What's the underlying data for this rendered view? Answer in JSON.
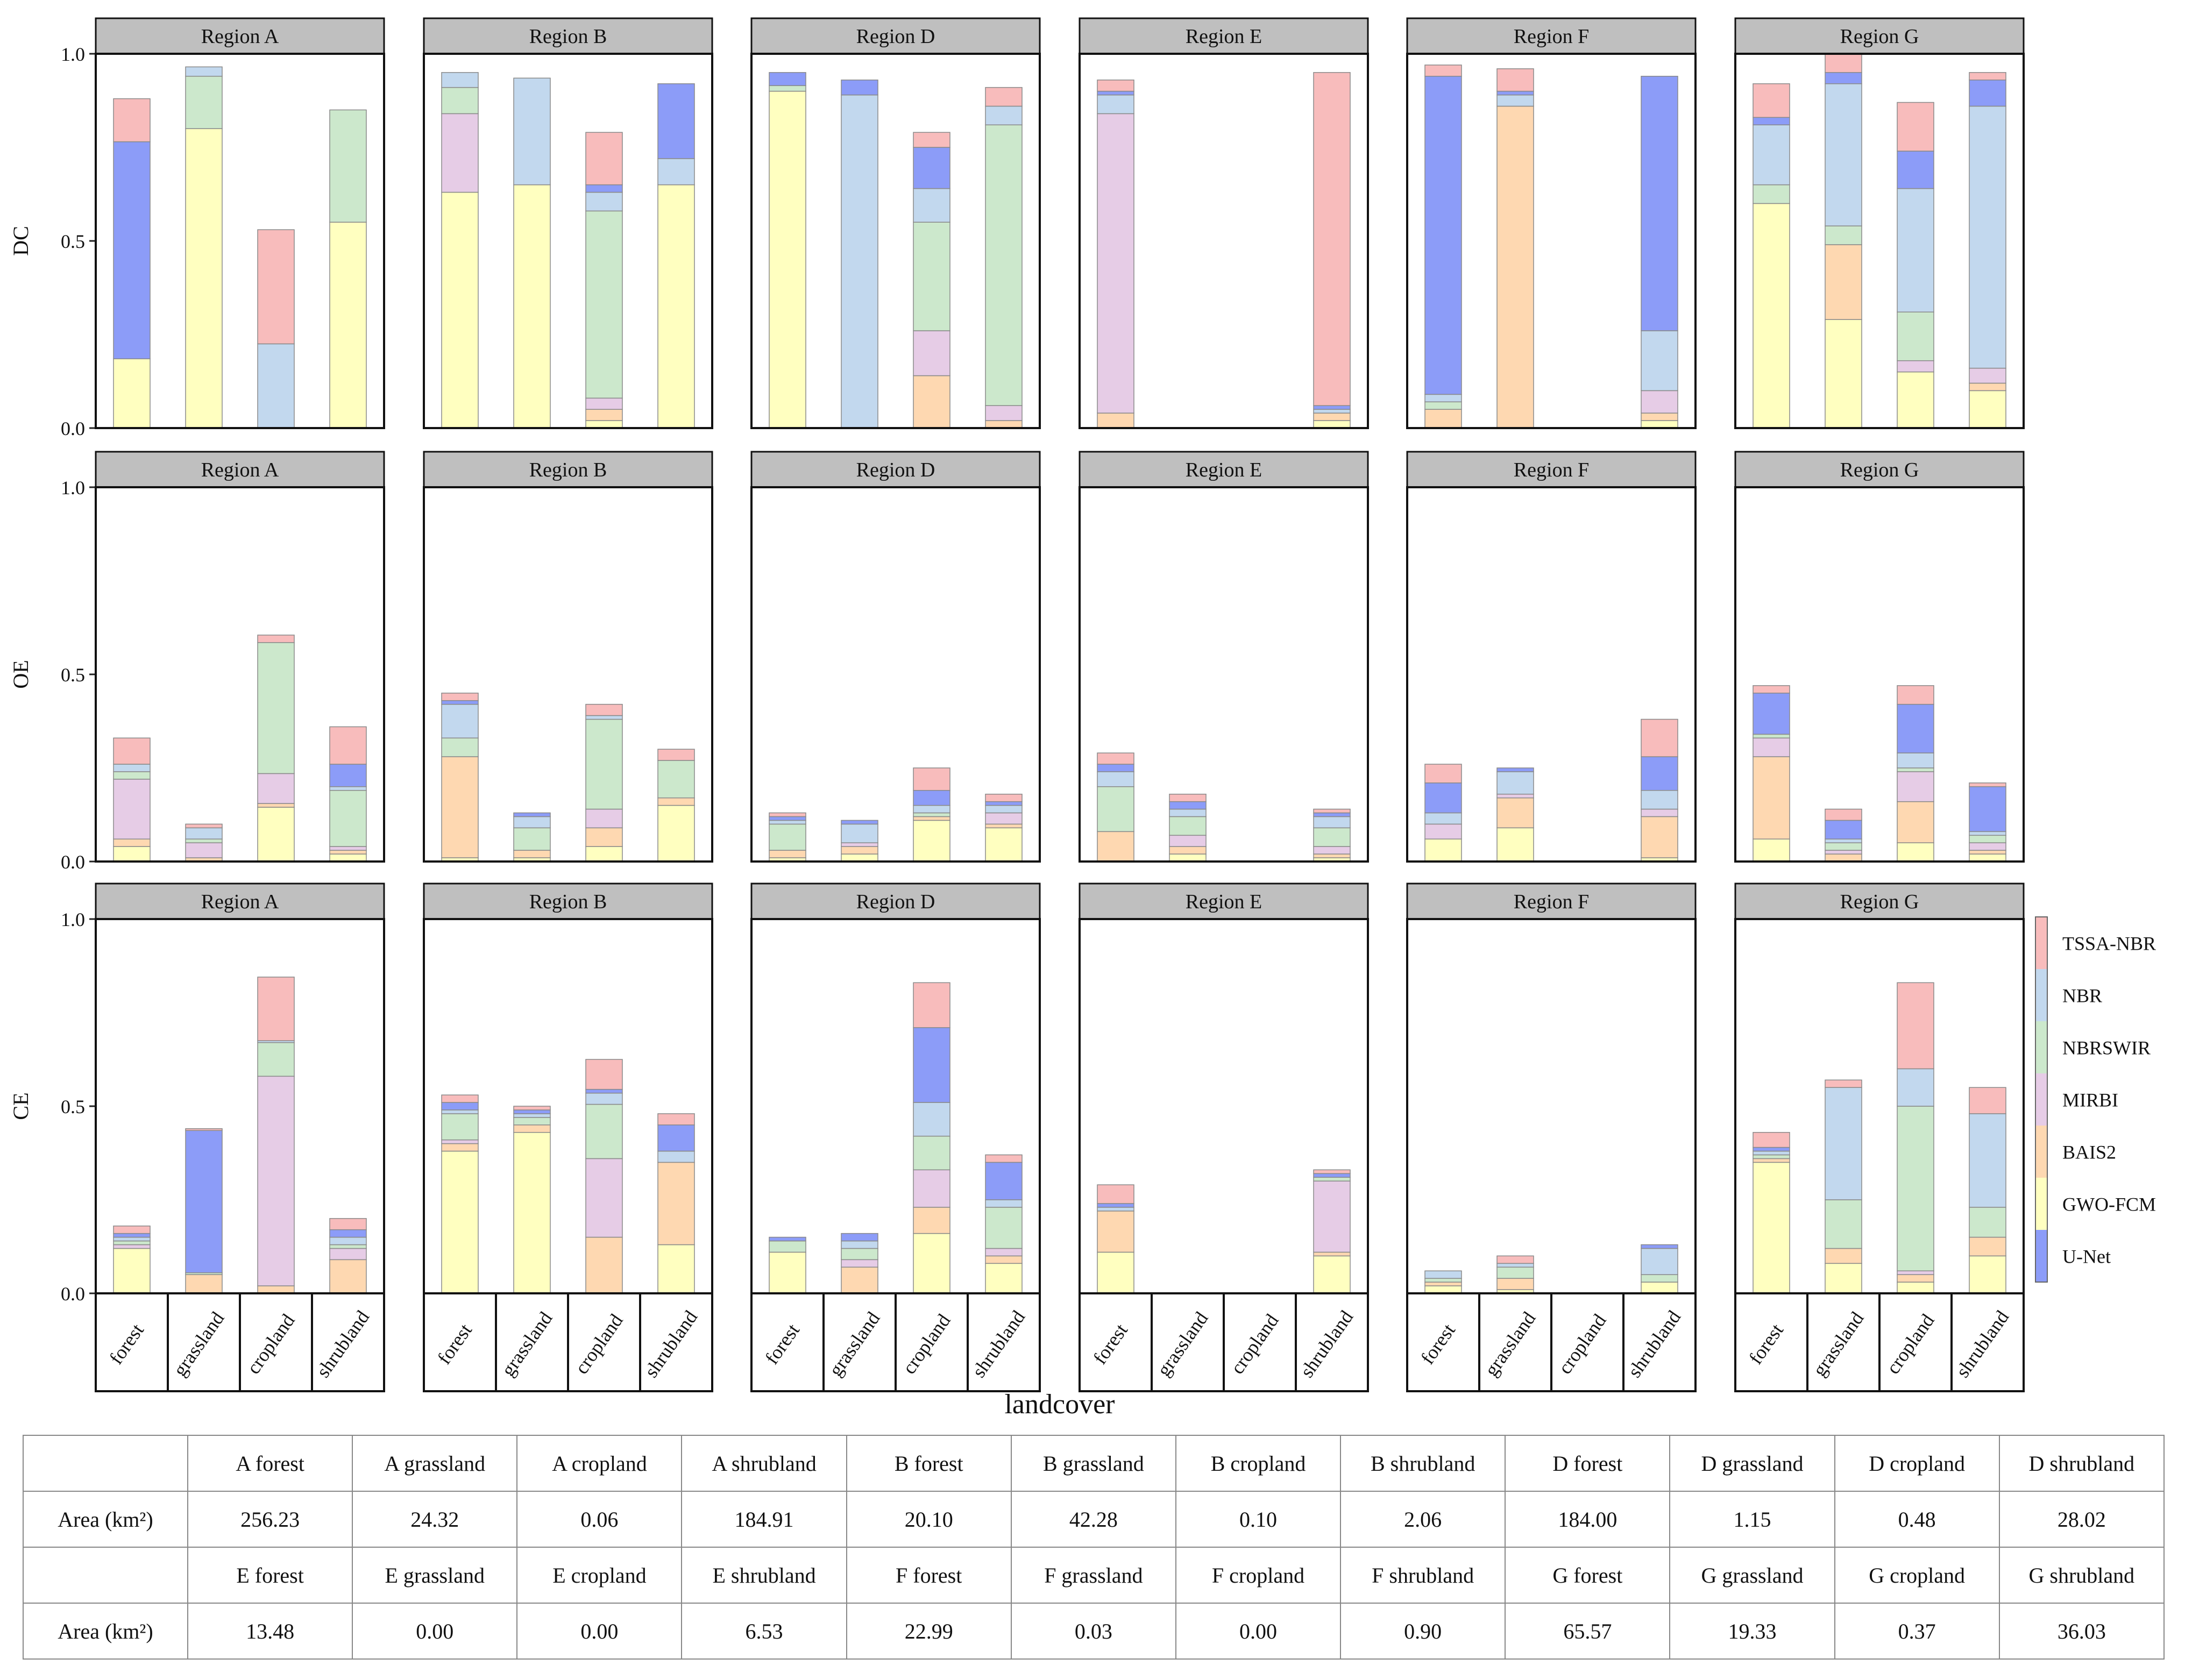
{
  "chart_data": {
    "type": "bar",
    "stacked": true,
    "rows": [
      "DC",
      "OE",
      "CE"
    ],
    "regions": [
      "Region A",
      "Region B",
      "Region D",
      "Region E",
      "Region F",
      "Region G"
    ],
    "categories": [
      "forest",
      "grassland",
      "cropland",
      "shrubland"
    ],
    "xlabel": "landcover",
    "ylim": [
      0,
      1.0
    ],
    "yticks": [
      "0.0",
      "0.5",
      "1.0"
    ],
    "legend": {
      "position": "right",
      "entries": [
        "TSSA-NBR",
        "NBR",
        "NBRSWIR",
        "MIRBI",
        "BAIS2",
        "GWO-FCM",
        "U-Net"
      ]
    },
    "stack_order": [
      "GWO-FCM",
      "BAIS2",
      "MIRBI",
      "NBRSWIR",
      "NBR",
      "U-Net",
      "TSSA-NBR"
    ],
    "colors": {
      "GWO-FCM": "#ffffc0",
      "BAIS2": "#fed8b1",
      "MIRBI": "#e6cce6",
      "NBRSWIR": "#cce8cc",
      "NBR": "#c2d8ee",
      "U-Net": "#8c9cf8",
      "TSSA-NBR": "#f8bcbc"
    },
    "panels": {
      "DC": {
        "Region A": [
          [
            0.185,
            0,
            0,
            0,
            0,
            0.58,
            0.115
          ],
          [
            0.8,
            0,
            0,
            0.14,
            0.025,
            0,
            0
          ],
          [
            0,
            0,
            0,
            0,
            0.225,
            0,
            0.305
          ],
          [
            0.55,
            0,
            0,
            0.3,
            0,
            0,
            0
          ]
        ],
        "Region B": [
          [
            0.63,
            0,
            0.21,
            0.07,
            0.04,
            0,
            0
          ],
          [
            0.65,
            0,
            0,
            0,
            0.285,
            0,
            0
          ],
          [
            0.02,
            0.03,
            0.03,
            0.5,
            0.05,
            0.02,
            0.14
          ],
          [
            0.65,
            0,
            0,
            0,
            0.07,
            0.2,
            0
          ]
        ],
        "Region D": [
          [
            0.9,
            0,
            0,
            0.015,
            0,
            0.035,
            0
          ],
          [
            0,
            0,
            0,
            0,
            0.89,
            0.04,
            0
          ],
          [
            0,
            0.14,
            0.12,
            0.29,
            0.09,
            0.11,
            0.04
          ],
          [
            0,
            0.02,
            0.04,
            0.75,
            0.05,
            0,
            0.05
          ]
        ],
        "Region E": [
          [
            0,
            0.04,
            0.8,
            0,
            0.05,
            0.01,
            0.03
          ],
          [
            0,
            0,
            0,
            0,
            0,
            0,
            0
          ],
          [
            0,
            0,
            0,
            0,
            0,
            0,
            0
          ],
          [
            0.02,
            0.02,
            0,
            0,
            0.01,
            0.01,
            0.89
          ]
        ],
        "Region F": [
          [
            0,
            0.05,
            0,
            0.02,
            0.02,
            0.85,
            0.03
          ],
          [
            0,
            0.86,
            0,
            0,
            0.03,
            0.01,
            0.06
          ],
          [
            0,
            0,
            0,
            0,
            0,
            0,
            0
          ],
          [
            0.02,
            0.02,
            0.06,
            0,
            0.16,
            0.68,
            0
          ]
        ],
        "Region G": [
          [
            0.6,
            0,
            0,
            0.05,
            0.16,
            0.02,
            0.09
          ],
          [
            0.29,
            0.2,
            0,
            0.05,
            0.38,
            0.03,
            0.05
          ],
          [
            0.15,
            0,
            0.03,
            0.13,
            0.33,
            0.1,
            0.13
          ],
          [
            0.1,
            0.02,
            0.04,
            0,
            0.7,
            0.07,
            0.02
          ]
        ]
      },
      "OE": {
        "Region A": [
          [
            0.04,
            0.02,
            0.16,
            0.02,
            0.02,
            0,
            0.07
          ],
          [
            0,
            0.01,
            0.04,
            0.01,
            0.03,
            0,
            0.01
          ],
          [
            0.145,
            0.01,
            0.08,
            0.35,
            0,
            0,
            0.02
          ],
          [
            0.02,
            0.01,
            0.01,
            0.15,
            0.01,
            0.06,
            0.1
          ]
        ],
        "Region B": [
          [
            0.01,
            0.27,
            0,
            0.05,
            0.09,
            0.01,
            0.02
          ],
          [
            0.01,
            0.02,
            0,
            0.06,
            0.03,
            0.01,
            0
          ],
          [
            0.04,
            0.05,
            0.05,
            0.24,
            0.01,
            0,
            0.03
          ],
          [
            0.15,
            0.02,
            0,
            0.1,
            0,
            0,
            0.03
          ]
        ],
        "Region D": [
          [
            0.01,
            0.02,
            0,
            0.07,
            0.01,
            0.01,
            0.01
          ],
          [
            0.02,
            0.02,
            0.01,
            0,
            0.05,
            0.01,
            0
          ],
          [
            0.11,
            0.01,
            0,
            0.01,
            0.02,
            0.04,
            0.06
          ],
          [
            0.09,
            0.01,
            0.03,
            0,
            0.02,
            0.01,
            0.02
          ]
        ],
        "Region E": [
          [
            0,
            0.08,
            0,
            0.12,
            0.04,
            0.02,
            0.03
          ],
          [
            0.02,
            0.02,
            0.03,
            0.05,
            0.02,
            0.02,
            0.02
          ],
          [
            0,
            0,
            0,
            0,
            0,
            0,
            0
          ],
          [
            0.01,
            0.01,
            0.02,
            0.05,
            0.03,
            0.01,
            0.01
          ]
        ],
        "Region F": [
          [
            0.06,
            0,
            0.04,
            0,
            0.03,
            0.08,
            0.05
          ],
          [
            0.09,
            0.08,
            0.01,
            0,
            0.06,
            0.01,
            0
          ],
          [
            0,
            0,
            0,
            0,
            0,
            0,
            0
          ],
          [
            0.01,
            0.11,
            0.02,
            0,
            0.05,
            0.09,
            0.1
          ]
        ],
        "Region G": [
          [
            0.06,
            0.22,
            0.05,
            0.01,
            0,
            0.11,
            0.02
          ],
          [
            0,
            0.02,
            0.01,
            0.02,
            0.01,
            0.05,
            0.03
          ],
          [
            0.05,
            0.11,
            0.08,
            0.01,
            0.04,
            0.13,
            0.05
          ],
          [
            0.02,
            0.01,
            0.02,
            0.02,
            0.01,
            0.12,
            0.01
          ]
        ]
      },
      "CE": {
        "Region A": [
          [
            0.12,
            0,
            0.01,
            0.01,
            0.01,
            0.01,
            0.02
          ],
          [
            0,
            0.05,
            0,
            0.005,
            0,
            0.38,
            0.005
          ],
          [
            0,
            0.02,
            0.56,
            0.09,
            0.005,
            0,
            0.17
          ],
          [
            0,
            0.09,
            0.03,
            0.01,
            0.02,
            0.02,
            0.03
          ]
        ],
        "Region B": [
          [
            0.38,
            0.02,
            0.01,
            0.07,
            0.01,
            0.02,
            0.02
          ],
          [
            0.43,
            0.02,
            0,
            0.02,
            0.01,
            0.01,
            0.01
          ],
          [
            0,
            0.15,
            0.21,
            0.145,
            0.03,
            0.01,
            0.08
          ],
          [
            0.13,
            0.22,
            0,
            0,
            0.03,
            0.07,
            0.03
          ]
        ],
        "Region D": [
          [
            0.11,
            0,
            0,
            0.03,
            0,
            0.01,
            0
          ],
          [
            0,
            0.07,
            0.02,
            0.03,
            0.02,
            0.02,
            0
          ],
          [
            0.16,
            0.07,
            0.1,
            0.09,
            0.09,
            0.2,
            0.12
          ],
          [
            0.08,
            0.02,
            0.02,
            0.11,
            0.02,
            0.1,
            0.02
          ]
        ],
        "Region E": [
          [
            0.11,
            0.11,
            0,
            0,
            0.01,
            0.01,
            0.05
          ],
          [
            0,
            0,
            0,
            0,
            0,
            0,
            0
          ],
          [
            0,
            0,
            0,
            0,
            0,
            0,
            0
          ],
          [
            0.1,
            0.01,
            0.19,
            0.01,
            0,
            0.01,
            0.01
          ]
        ],
        "Region F": [
          [
            0.02,
            0.01,
            0,
            0.01,
            0.02,
            0,
            0
          ],
          [
            0.01,
            0.03,
            0,
            0.03,
            0.01,
            0,
            0.02
          ],
          [
            0,
            0,
            0,
            0,
            0,
            0,
            0
          ],
          [
            0.03,
            0,
            0,
            0.02,
            0.07,
            0.01,
            0
          ]
        ],
        "Region G": [
          [
            0.35,
            0.01,
            0,
            0.01,
            0.01,
            0.01,
            0.04
          ],
          [
            0.08,
            0.04,
            0,
            0.13,
            0.3,
            0,
            0.02
          ],
          [
            0.03,
            0.02,
            0.01,
            0.44,
            0.1,
            0,
            0.23
          ],
          [
            0.1,
            0.05,
            0,
            0.08,
            0.25,
            0,
            0.07
          ]
        ]
      }
    }
  },
  "area_table": {
    "row_label": "Area (km²)",
    "rows": [
      {
        "headers": [
          "A forest",
          "A grassland",
          "A cropland",
          "A shrubland",
          "B forest",
          "B grassland",
          "B cropland",
          "B shrubland",
          "D forest",
          "D grassland",
          "D cropland",
          "D shrubland"
        ],
        "values": [
          "256.23",
          "24.32",
          "0.06",
          "184.91",
          "20.10",
          "42.28",
          "0.10",
          "2.06",
          "184.00",
          "1.15",
          "0.48",
          "28.02"
        ]
      },
      {
        "headers": [
          "E forest",
          "E grassland",
          "E cropland",
          "E shrubland",
          "F forest",
          "F grassland",
          "F cropland",
          "F shrubland",
          "G forest",
          "G grassland",
          "G cropland",
          "G shrubland"
        ],
        "values": [
          "13.48",
          "0.00",
          "0.00",
          "6.53",
          "22.99",
          "0.03",
          "0.00",
          "0.90",
          "65.57",
          "19.33",
          "0.37",
          "36.03"
        ]
      }
    ]
  }
}
